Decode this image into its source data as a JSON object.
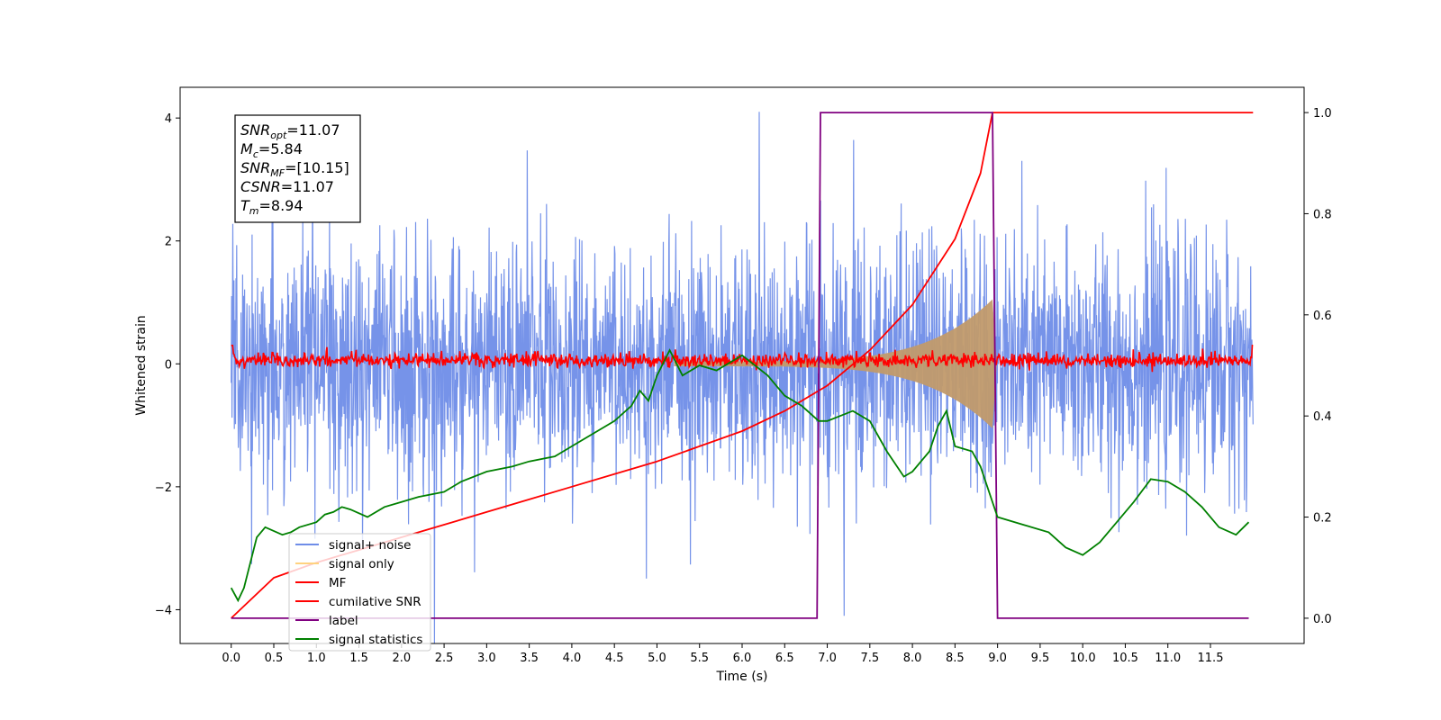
{
  "chart_data": {
    "type": "line",
    "title": "",
    "xlabel": "Time (s)",
    "ylabel": "Whitened strain",
    "xlim": [
      -0.6,
      12.6
    ],
    "ylim": [
      -4.55,
      4.5
    ],
    "y2lim": [
      -0.05,
      1.05
    ],
    "x_ticks": [
      0.0,
      0.5,
      1.0,
      1.5,
      2.0,
      2.5,
      3.0,
      3.5,
      4.0,
      4.5,
      5.0,
      5.5,
      6.0,
      6.5,
      7.0,
      7.5,
      8.0,
      8.5,
      9.0,
      9.5,
      10.0,
      10.5,
      11.0,
      11.5
    ],
    "x_tick_labels": [
      "0.0",
      "0.5",
      "1.0",
      "1.5",
      "2.0",
      "2.5",
      "3.0",
      "3.5",
      "4.0",
      "4.5",
      "5.0",
      "5.5",
      "6.0",
      "6.5",
      "7.0",
      "7.5",
      "8.0",
      "8.5",
      "9.0",
      "9.5",
      "10.0",
      "10.5",
      "11.0",
      "11.5"
    ],
    "y_ticks": [
      -4,
      -2,
      0,
      2,
      4
    ],
    "y_tick_labels": [
      "−4",
      "−2",
      "0",
      "2",
      "4"
    ],
    "y2_ticks": [
      0.0,
      0.2,
      0.4,
      0.6,
      0.8,
      1.0
    ],
    "y2_tick_labels": [
      "0.0",
      "0.2",
      "0.4",
      "0.6",
      "0.8",
      "1.0"
    ],
    "grid": false,
    "legend_placement": "lower-left",
    "noise_seed": 7,
    "merger_time": 8.94,
    "duration": 12.0,
    "series": [
      {
        "name": "signal+ noise",
        "color": "#6f8de8",
        "axis": "left",
        "kind": "noise",
        "sigma": 1.0,
        "peak": 4.1
      },
      {
        "name": "signal only",
        "color": "#c19a6b",
        "legend_color": "#ffd27f",
        "axis": "left",
        "kind": "chirp",
        "band": [
          0.04,
          1.05
        ]
      },
      {
        "name": "MF",
        "color": "#ff0000",
        "axis": "left",
        "kind": "mf",
        "sigma": 0.08,
        "peak": 0.3
      },
      {
        "name": "cumilative SNR",
        "color": "#ff0000",
        "axis": "right",
        "x": [
          0.0,
          0.5,
          1.0,
          1.5,
          2.0,
          2.5,
          3.0,
          3.5,
          4.0,
          4.5,
          5.0,
          5.5,
          6.0,
          6.5,
          7.0,
          7.5,
          8.0,
          8.5,
          8.8,
          8.94,
          9.0,
          9.5,
          10.0,
          10.5,
          11.0,
          11.5,
          12.0
        ],
        "y": [
          0.0,
          0.08,
          0.11,
          0.135,
          0.16,
          0.185,
          0.21,
          0.235,
          0.26,
          0.285,
          0.31,
          0.34,
          0.37,
          0.41,
          0.46,
          0.53,
          0.62,
          0.75,
          0.88,
          1.0,
          1.0,
          1.0,
          1.0,
          1.0,
          1.0,
          1.0,
          1.0
        ]
      },
      {
        "name": "label",
        "color": "#800080",
        "axis": "right",
        "x": [
          0.0,
          6.88,
          6.92,
          8.94,
          9.0,
          11.95
        ],
        "y": [
          0.0,
          0.0,
          1.0,
          1.0,
          0.0,
          0.0
        ]
      },
      {
        "name": "signal statistics",
        "color": "#008000",
        "axis": "right",
        "x": [
          0.0,
          0.08,
          0.15,
          0.3,
          0.4,
          0.6,
          0.7,
          0.8,
          1.0,
          1.1,
          1.2,
          1.3,
          1.4,
          1.6,
          1.8,
          2.0,
          2.2,
          2.5,
          2.7,
          3.0,
          3.3,
          3.5,
          3.8,
          4.0,
          4.3,
          4.5,
          4.7,
          4.8,
          4.9,
          5.0,
          5.15,
          5.3,
          5.5,
          5.7,
          6.0,
          6.3,
          6.5,
          6.7,
          6.9,
          7.0,
          7.3,
          7.5,
          7.7,
          7.9,
          8.0,
          8.2,
          8.3,
          8.4,
          8.5,
          8.7,
          8.8,
          9.0,
          9.3,
          9.6,
          9.8,
          10.0,
          10.2,
          10.4,
          10.6,
          10.8,
          11.0,
          11.2,
          11.4,
          11.6,
          11.8,
          11.95
        ],
        "y": [
          0.06,
          0.035,
          0.06,
          0.16,
          0.18,
          0.165,
          0.17,
          0.18,
          0.19,
          0.205,
          0.21,
          0.22,
          0.215,
          0.2,
          0.22,
          0.23,
          0.24,
          0.25,
          0.27,
          0.29,
          0.3,
          0.31,
          0.32,
          0.34,
          0.37,
          0.39,
          0.42,
          0.45,
          0.43,
          0.48,
          0.53,
          0.48,
          0.5,
          0.49,
          0.52,
          0.48,
          0.44,
          0.42,
          0.39,
          0.39,
          0.41,
          0.39,
          0.33,
          0.28,
          0.29,
          0.33,
          0.38,
          0.41,
          0.34,
          0.33,
          0.3,
          0.2,
          0.185,
          0.17,
          0.14,
          0.125,
          0.15,
          0.19,
          0.23,
          0.275,
          0.27,
          0.25,
          0.22,
          0.18,
          0.165,
          0.19
        ]
      }
    ],
    "info_box": [
      {
        "main": "SNR",
        "sub": "opt",
        "value": "=11.07"
      },
      {
        "main": "M",
        "sub": "c",
        "value": "=5.84"
      },
      {
        "main": "SNR",
        "sub": "MF",
        "value": "=[10.15]"
      },
      {
        "main": "CSNR",
        "sub": "",
        "value": "=11.07"
      },
      {
        "main": "T",
        "sub": "m",
        "value": "=8.94"
      }
    ]
  }
}
